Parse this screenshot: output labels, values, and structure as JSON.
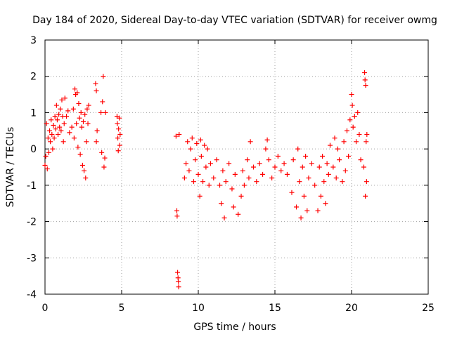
{
  "chart_data": {
    "type": "scatter",
    "title": "Day 184 of 2020, Sidereal Day-to-day VTEC variation (SDTVAR) for receiver owmg",
    "xlabel": "GPS time / hours",
    "ylabel": "SDTVAR / TECUs",
    "xlim": [
      0,
      25
    ],
    "ylim": [
      -4,
      3
    ],
    "xticks": [
      0,
      5,
      10,
      15,
      20,
      25
    ],
    "yticks": [
      -4,
      -3,
      -2,
      -1,
      0,
      1,
      2,
      3
    ],
    "grid": true,
    "marker": "plus",
    "color": "#ff0000",
    "series": [
      {
        "name": "SDTVAR",
        "points": [
          [
            0.0,
            -0.45
          ],
          [
            0.05,
            -0.2
          ],
          [
            0.1,
            0.7
          ],
          [
            0.15,
            -0.55
          ],
          [
            0.2,
            0.3
          ],
          [
            0.25,
            -0.1
          ],
          [
            0.3,
            0.5
          ],
          [
            0.35,
            0.2
          ],
          [
            0.4,
            0.8
          ],
          [
            0.45,
            0.4
          ],
          [
            0.5,
            0.0
          ],
          [
            0.55,
            0.65
          ],
          [
            0.6,
            0.3
          ],
          [
            0.65,
            0.9
          ],
          [
            0.7,
            0.55
          ],
          [
            0.75,
            1.2
          ],
          [
            0.8,
            0.8
          ],
          [
            0.85,
            0.4
          ],
          [
            0.9,
            0.95
          ],
          [
            0.95,
            0.6
          ],
          [
            1.0,
            1.1
          ],
          [
            1.05,
            0.5
          ],
          [
            1.1,
            1.35
          ],
          [
            1.15,
            0.9
          ],
          [
            1.2,
            0.2
          ],
          [
            1.25,
            0.7
          ],
          [
            1.3,
            1.4
          ],
          [
            1.4,
            0.9
          ],
          [
            1.5,
            1.05
          ],
          [
            1.6,
            0.45
          ],
          [
            1.75,
            0.6
          ],
          [
            1.85,
            1.1
          ],
          [
            1.9,
            0.3
          ],
          [
            1.95,
            1.65
          ],
          [
            2.0,
            1.5
          ],
          [
            2.05,
            0.7
          ],
          [
            2.1,
            1.55
          ],
          [
            2.15,
            0.05
          ],
          [
            2.2,
            1.25
          ],
          [
            2.25,
            0.85
          ],
          [
            2.3,
            -0.15
          ],
          [
            2.35,
            1.0
          ],
          [
            2.4,
            0.6
          ],
          [
            2.45,
            -0.45
          ],
          [
            2.5,
            0.75
          ],
          [
            2.55,
            -0.6
          ],
          [
            2.6,
            0.95
          ],
          [
            2.65,
            -0.8
          ],
          [
            2.7,
            0.2
          ],
          [
            2.75,
            1.1
          ],
          [
            2.8,
            0.7
          ],
          [
            2.85,
            1.2
          ],
          [
            3.3,
            1.8
          ],
          [
            3.35,
            1.6
          ],
          [
            3.35,
            0.2
          ],
          [
            3.4,
            0.5
          ],
          [
            3.65,
            1.0
          ],
          [
            3.7,
            -0.1
          ],
          [
            3.75,
            1.3
          ],
          [
            3.8,
            2.0
          ],
          [
            3.85,
            -0.5
          ],
          [
            3.9,
            -0.25
          ],
          [
            3.95,
            1.0
          ],
          [
            4.7,
            0.9
          ],
          [
            4.72,
            0.7
          ],
          [
            4.75,
            0.3
          ],
          [
            4.78,
            -0.05
          ],
          [
            4.8,
            0.55
          ],
          [
            4.85,
            0.85
          ],
          [
            4.88,
            0.1
          ],
          [
            4.9,
            0.4
          ],
          [
            8.55,
            0.35
          ],
          [
            8.6,
            -1.7
          ],
          [
            8.62,
            -1.85
          ],
          [
            8.65,
            -3.4
          ],
          [
            8.68,
            -3.55
          ],
          [
            8.7,
            -3.65
          ],
          [
            8.72,
            -3.8
          ],
          [
            8.75,
            0.4
          ],
          [
            9.1,
            -0.8
          ],
          [
            9.2,
            -0.4
          ],
          [
            9.3,
            0.2
          ],
          [
            9.4,
            -0.6
          ],
          [
            9.5,
            0.0
          ],
          [
            9.6,
            0.3
          ],
          [
            9.7,
            -0.9
          ],
          [
            9.8,
            -0.3
          ],
          [
            9.9,
            0.15
          ],
          [
            10.0,
            -0.7
          ],
          [
            10.1,
            -1.3
          ],
          [
            10.15,
            0.25
          ],
          [
            10.2,
            -0.2
          ],
          [
            10.3,
            -0.9
          ],
          [
            10.4,
            0.1
          ],
          [
            10.5,
            -0.5
          ],
          [
            10.6,
            0.0
          ],
          [
            10.7,
            -1.0
          ],
          [
            10.8,
            -0.4
          ],
          [
            11.0,
            -0.8
          ],
          [
            11.2,
            -0.3
          ],
          [
            11.4,
            -1.0
          ],
          [
            11.5,
            -1.5
          ],
          [
            11.6,
            -0.6
          ],
          [
            11.7,
            -1.9
          ],
          [
            11.8,
            -0.9
          ],
          [
            12.0,
            -0.4
          ],
          [
            12.2,
            -1.1
          ],
          [
            12.3,
            -1.6
          ],
          [
            12.4,
            -0.7
          ],
          [
            12.6,
            -1.8
          ],
          [
            12.8,
            -1.3
          ],
          [
            12.9,
            -0.6
          ],
          [
            13.0,
            -1.0
          ],
          [
            13.2,
            -0.3
          ],
          [
            13.3,
            -0.8
          ],
          [
            13.4,
            0.2
          ],
          [
            13.6,
            -0.5
          ],
          [
            13.8,
            -0.9
          ],
          [
            14.0,
            -0.4
          ],
          [
            14.2,
            -0.7
          ],
          [
            14.4,
            0.0
          ],
          [
            14.5,
            0.25
          ],
          [
            14.6,
            -0.3
          ],
          [
            14.8,
            -0.8
          ],
          [
            15.0,
            -0.5
          ],
          [
            15.2,
            -0.2
          ],
          [
            15.4,
            -0.6
          ],
          [
            15.6,
            -0.4
          ],
          [
            15.8,
            -0.7
          ],
          [
            16.1,
            -1.2
          ],
          [
            16.2,
            -0.3
          ],
          [
            16.4,
            -1.6
          ],
          [
            16.5,
            0.0
          ],
          [
            16.6,
            -0.9
          ],
          [
            16.7,
            -1.9
          ],
          [
            16.8,
            -0.5
          ],
          [
            16.9,
            -1.3
          ],
          [
            17.0,
            -0.2
          ],
          [
            17.1,
            -1.7
          ],
          [
            17.2,
            -0.8
          ],
          [
            17.4,
            -0.4
          ],
          [
            17.6,
            -1.0
          ],
          [
            17.8,
            -1.7
          ],
          [
            17.9,
            -0.5
          ],
          [
            18.0,
            -1.3
          ],
          [
            18.1,
            -0.2
          ],
          [
            18.2,
            -0.9
          ],
          [
            18.3,
            -1.5
          ],
          [
            18.4,
            -0.4
          ],
          [
            18.5,
            -0.7
          ],
          [
            18.6,
            0.1
          ],
          [
            18.8,
            -0.5
          ],
          [
            18.9,
            0.3
          ],
          [
            19.0,
            -0.8
          ],
          [
            19.1,
            0.0
          ],
          [
            19.2,
            -0.3
          ],
          [
            19.4,
            -0.9
          ],
          [
            19.5,
            0.2
          ],
          [
            19.6,
            -0.6
          ],
          [
            19.7,
            0.5
          ],
          [
            19.8,
            -0.2
          ],
          [
            19.9,
            0.8
          ],
          [
            20.0,
            1.5
          ],
          [
            20.05,
            1.2
          ],
          [
            20.1,
            0.6
          ],
          [
            20.2,
            0.9
          ],
          [
            20.3,
            0.2
          ],
          [
            20.4,
            1.0
          ],
          [
            20.5,
            0.4
          ],
          [
            20.6,
            -0.3
          ],
          [
            20.8,
            -0.5
          ],
          [
            20.85,
            2.1
          ],
          [
            20.88,
            1.9
          ],
          [
            20.9,
            -1.3
          ],
          [
            20.92,
            1.75
          ],
          [
            20.95,
            0.2
          ],
          [
            20.98,
            -0.9
          ],
          [
            21.0,
            0.4
          ]
        ]
      }
    ]
  }
}
